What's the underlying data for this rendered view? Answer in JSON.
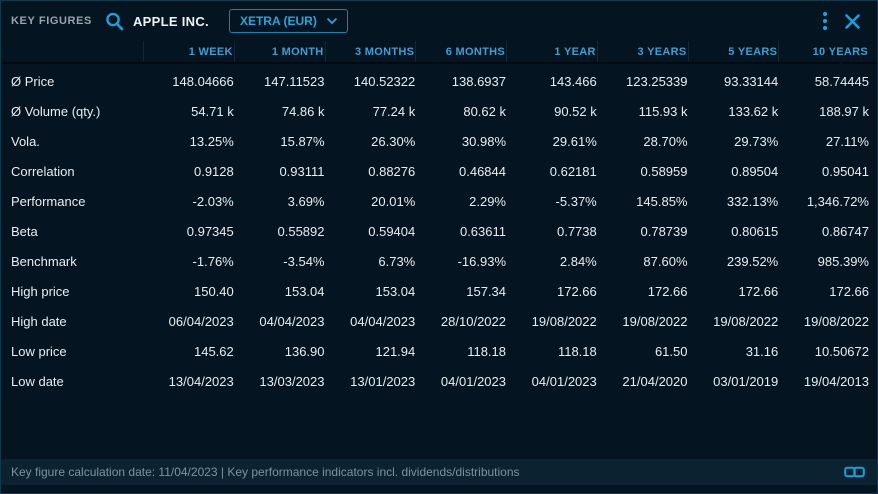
{
  "header": {
    "title": "KEY FIGURES",
    "instrument": "APPLE INC.",
    "exchange": "XETRA (EUR)"
  },
  "icons": {
    "search": "magnifier",
    "chevron_down": "dropdown chevron",
    "kebab_menu": "vertical three dots",
    "close": "x cross",
    "link": "chain link"
  },
  "colors": {
    "background": "#041420",
    "accent_blue": "#1f9ed9",
    "column_header_blue": "#3f9fd2",
    "text_white": "#e9eef0",
    "footer_text": "#7b94a2",
    "footer_background": "#0b2230"
  },
  "table": {
    "columns": [
      "1 WEEK",
      "1 MONTH",
      "3 MONTHS",
      "6 MONTHS",
      "1 YEAR",
      "3 YEARS",
      "5 YEARS",
      "10 YEARS"
    ],
    "rows": [
      {
        "label": "Ø Price",
        "values": [
          "148.04666",
          "147.11523",
          "140.52322",
          "138.6937",
          "143.466",
          "123.25339",
          "93.33144",
          "58.74445"
        ]
      },
      {
        "label": "Ø Volume (qty.)",
        "values": [
          "54.71 k",
          "74.86 k",
          "77.24 k",
          "80.62 k",
          "90.52 k",
          "115.93 k",
          "133.62 k",
          "188.97 k"
        ]
      },
      {
        "label": "Vola.",
        "values": [
          "13.25%",
          "15.87%",
          "26.30%",
          "30.98%",
          "29.61%",
          "28.70%",
          "29.73%",
          "27.11%"
        ]
      },
      {
        "label": "Correlation",
        "values": [
          "0.9128",
          "0.93111",
          "0.88276",
          "0.46844",
          "0.62181",
          "0.58959",
          "0.89504",
          "0.95041"
        ]
      },
      {
        "label": "Performance",
        "values": [
          "-2.03%",
          "3.69%",
          "20.01%",
          "2.29%",
          "-5.37%",
          "145.85%",
          "332.13%",
          "1,346.72%"
        ]
      },
      {
        "label": "Beta",
        "values": [
          "0.97345",
          "0.55892",
          "0.59404",
          "0.63611",
          "0.7738",
          "0.78739",
          "0.80615",
          "0.86747"
        ]
      },
      {
        "label": "Benchmark",
        "values": [
          "-1.76%",
          "-3.54%",
          "6.73%",
          "-16.93%",
          "2.84%",
          "87.60%",
          "239.52%",
          "985.39%"
        ]
      },
      {
        "label": "High price",
        "values": [
          "150.40",
          "153.04",
          "153.04",
          "157.34",
          "172.66",
          "172.66",
          "172.66",
          "172.66"
        ]
      },
      {
        "label": "High date",
        "values": [
          "06/04/2023",
          "04/04/2023",
          "04/04/2023",
          "28/10/2022",
          "19/08/2022",
          "19/08/2022",
          "19/08/2022",
          "19/08/2022"
        ]
      },
      {
        "label": "Low price",
        "values": [
          "145.62",
          "136.90",
          "121.94",
          "118.18",
          "118.18",
          "61.50",
          "31.16",
          "10.50672"
        ]
      },
      {
        "label": "Low date",
        "values": [
          "13/04/2023",
          "13/03/2023",
          "13/01/2023",
          "04/01/2023",
          "04/01/2023",
          "21/04/2020",
          "03/01/2019",
          "19/04/2013"
        ]
      }
    ]
  },
  "footer": {
    "text": "Key figure calculation date: 11/04/2023 | Key performance indicators incl. dividends/distributions"
  }
}
